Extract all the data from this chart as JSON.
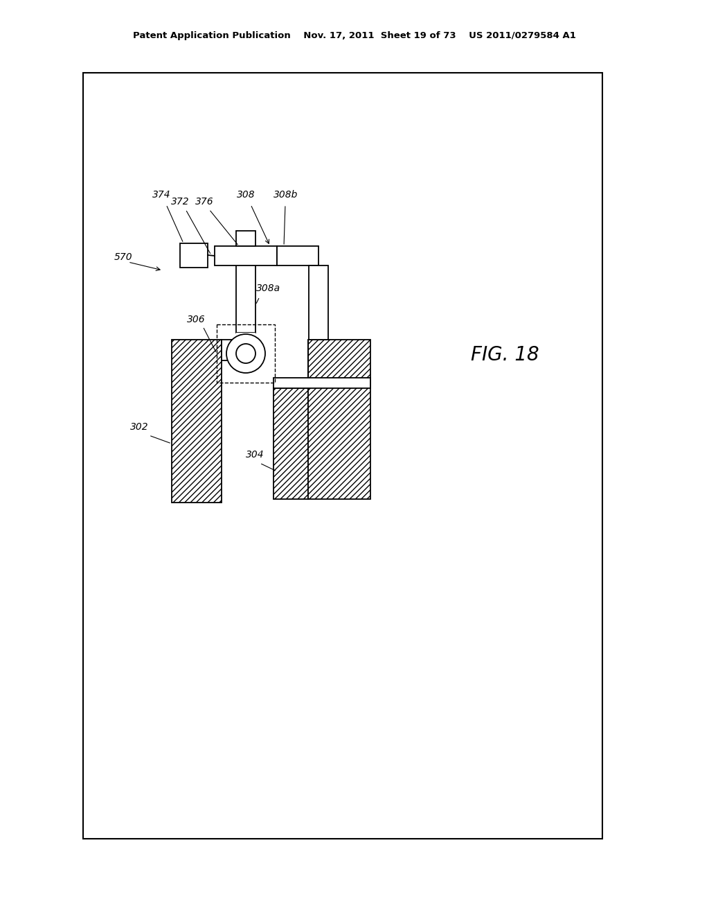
{
  "bg_color": "#ffffff",
  "header_text": "Patent Application Publication    Nov. 17, 2011  Sheet 19 of 73    US 2011/0279584 A1",
  "fig_label": "FIG. 18"
}
